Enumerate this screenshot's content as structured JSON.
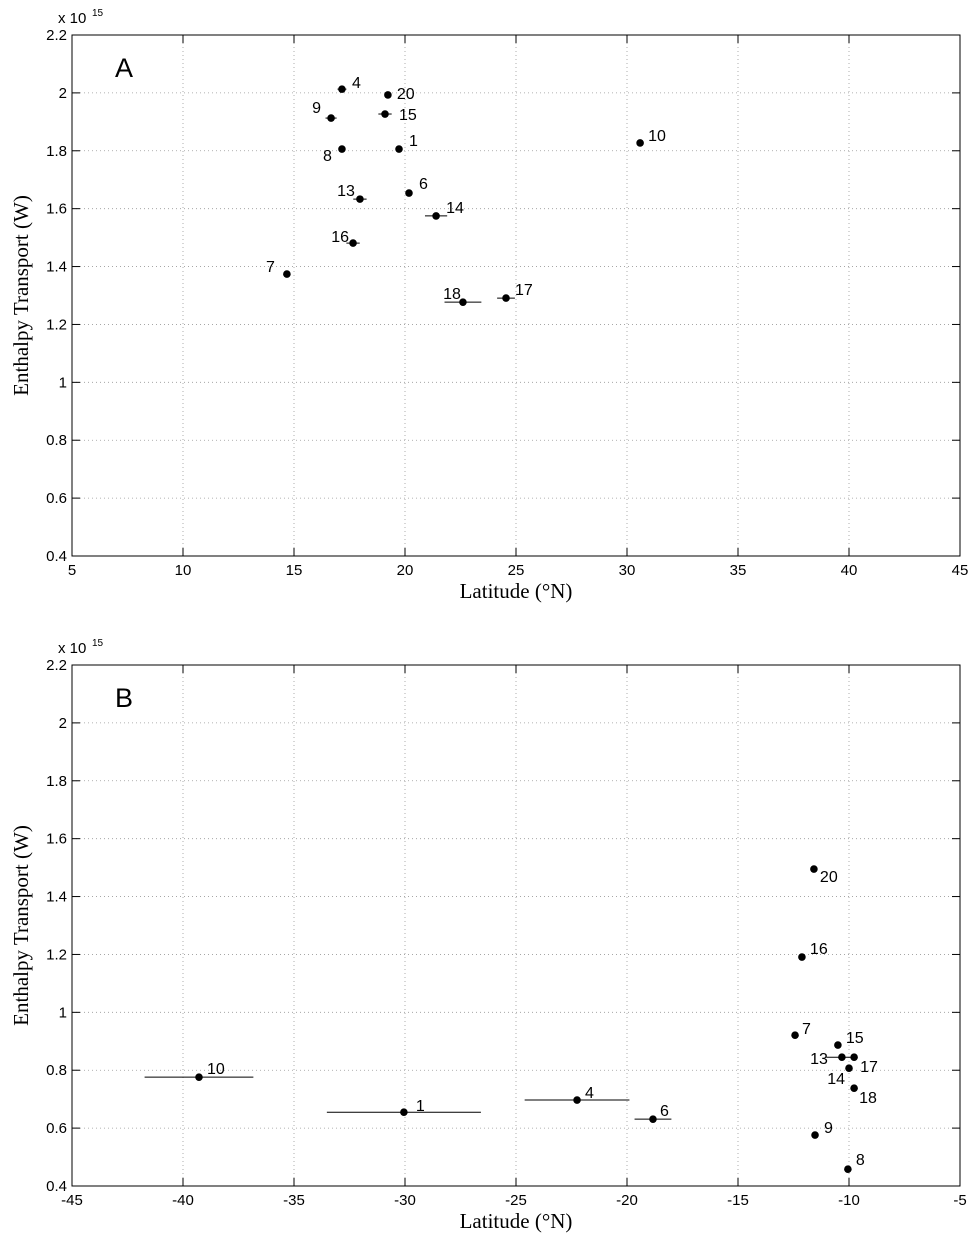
{
  "chart_data": [
    {
      "type": "scatter",
      "panel_label": "A",
      "xlabel": "Latitude (°N)",
      "ylabel": "Enthalpy Transport (W)",
      "multiplier": "x 10",
      "exponent": "15",
      "xlim": [
        5,
        45
      ],
      "xticks": [
        5,
        10,
        15,
        20,
        25,
        30,
        35,
        40,
        45
      ],
      "ylim": [
        0.4,
        2.2
      ],
      "yticks": [
        0.4,
        0.6,
        0.8,
        1,
        1.2,
        1.4,
        1.6,
        1.8,
        2,
        2.2
      ],
      "grid": true,
      "color": "#000000",
      "point_labels": [
        "4",
        "20",
        "9",
        "15",
        "8",
        "1",
        "10",
        "13",
        "6",
        "14",
        "16",
        "7",
        "18",
        "17"
      ],
      "x": [
        17.16,
        19.23,
        16.67,
        19.1,
        17.16,
        19.73,
        30.59,
        17.97,
        20.18,
        21.4,
        17.66,
        14.68,
        22.61,
        24.55
      ],
      "values": [
        2.013,
        1.993,
        1.913,
        1.927,
        1.806,
        1.806,
        1.827,
        1.633,
        1.654,
        1.575,
        1.481,
        1.374,
        1.277,
        1.291
      ],
      "xerr": [
        0.2,
        0.1,
        0.25,
        0.3,
        0.1,
        0.1,
        0.1,
        0.3,
        0.1,
        0.5,
        0.3,
        0.1,
        0.83,
        0.4
      ]
    },
    {
      "type": "scatter",
      "panel_label": "B",
      "xlabel": "Latitude (°N)",
      "ylabel": "Enthalpy Transport (W)",
      "multiplier": "x 10",
      "exponent": "15",
      "xlim": [
        -45,
        -5
      ],
      "xticks": [
        -45,
        -40,
        -35,
        -30,
        -25,
        -20,
        -15,
        -10,
        -5
      ],
      "ylim": [
        0.4,
        2.2
      ],
      "yticks": [
        0.4,
        0.6,
        0.8,
        1,
        1.2,
        1.4,
        1.6,
        1.8,
        2,
        2.2
      ],
      "grid": true,
      "color": "#000000",
      "point_labels": [
        "10",
        "1",
        "4",
        "6",
        "20",
        "16",
        "7",
        "15",
        "13",
        "17",
        "14",
        "18",
        "9",
        "8"
      ],
      "x": [
        -39.28,
        -30.05,
        -22.25,
        -18.83,
        -11.58,
        -12.12,
        -12.43,
        -10.5,
        -10.32,
        -9.77,
        -10.0,
        -9.77,
        -11.53,
        -10.05
      ],
      "values": [
        0.776,
        0.655,
        0.697,
        0.631,
        1.495,
        1.191,
        0.921,
        0.887,
        0.845,
        0.845,
        0.807,
        0.738,
        0.576,
        0.458
      ],
      "xerr": [
        2.45,
        3.47,
        2.36,
        0.83,
        0.15,
        0.1,
        0.1,
        0.1,
        0.7,
        0.1,
        0.1,
        0.1,
        0.15,
        0.1
      ]
    }
  ]
}
